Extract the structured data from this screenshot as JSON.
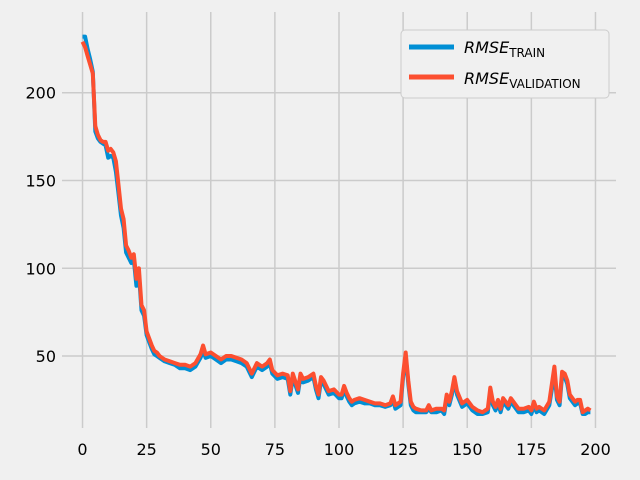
{
  "colors": {
    "background": "#f0f0f0",
    "grid": "#cbcbcb",
    "train": "#008fd5",
    "validation": "#fc4f30"
  },
  "chart_data": {
    "type": "line",
    "title": "",
    "xlabel": "",
    "ylabel": "",
    "xlim": [
      -8,
      208
    ],
    "ylim": [
      9,
      246
    ],
    "xticks": [
      0,
      25,
      50,
      75,
      100,
      125,
      150,
      175,
      200
    ],
    "yticks": [
      50,
      100,
      150,
      200
    ],
    "grid": true,
    "legend": {
      "position": "top-right"
    },
    "series": [
      {
        "name_main": "RMSE",
        "name_sub": "TRAIN",
        "color": "#008fd5",
        "points": [
          [
            0,
            232
          ],
          [
            1,
            232
          ],
          [
            2,
            225
          ],
          [
            3,
            219
          ],
          [
            4,
            212
          ],
          [
            5,
            178
          ],
          [
            6,
            174
          ],
          [
            7,
            172
          ],
          [
            8,
            171
          ],
          [
            9,
            170
          ],
          [
            10,
            163
          ],
          [
            11,
            164
          ],
          [
            12,
            163
          ],
          [
            13,
            155
          ],
          [
            14,
            143
          ],
          [
            15,
            130
          ],
          [
            16,
            123
          ],
          [
            17,
            109
          ],
          [
            18,
            106
          ],
          [
            19,
            103
          ],
          [
            20,
            105
          ],
          [
            21,
            90
          ],
          [
            22,
            97
          ],
          [
            23,
            76
          ],
          [
            24,
            73
          ],
          [
            25,
            62
          ],
          [
            26,
            58
          ],
          [
            27,
            54
          ],
          [
            28,
            51
          ],
          [
            29,
            50
          ],
          [
            30,
            49
          ],
          [
            32,
            47
          ],
          [
            34,
            46
          ],
          [
            36,
            45
          ],
          [
            38,
            43
          ],
          [
            40,
            43
          ],
          [
            42,
            42
          ],
          [
            44,
            44
          ],
          [
            46,
            49
          ],
          [
            47,
            53
          ],
          [
            48,
            49
          ],
          [
            50,
            50
          ],
          [
            52,
            48
          ],
          [
            54,
            46
          ],
          [
            56,
            48
          ],
          [
            58,
            48
          ],
          [
            60,
            47
          ],
          [
            62,
            46
          ],
          [
            64,
            44
          ],
          [
            66,
            38
          ],
          [
            68,
            44
          ],
          [
            70,
            42
          ],
          [
            72,
            44
          ],
          [
            73,
            46
          ],
          [
            74,
            40
          ],
          [
            76,
            37
          ],
          [
            78,
            38
          ],
          [
            80,
            37
          ],
          [
            81,
            28
          ],
          [
            82,
            38
          ],
          [
            84,
            29
          ],
          [
            85,
            38
          ],
          [
            86,
            35
          ],
          [
            88,
            36
          ],
          [
            90,
            38
          ],
          [
            91,
            31
          ],
          [
            92,
            26
          ],
          [
            93,
            36
          ],
          [
            94,
            34
          ],
          [
            96,
            28
          ],
          [
            98,
            29
          ],
          [
            100,
            26
          ],
          [
            101,
            26
          ],
          [
            102,
            31
          ],
          [
            103,
            27
          ],
          [
            104,
            24
          ],
          [
            105,
            22
          ],
          [
            106,
            23
          ],
          [
            108,
            24
          ],
          [
            110,
            23
          ],
          [
            112,
            23
          ],
          [
            114,
            22
          ],
          [
            116,
            22
          ],
          [
            118,
            21
          ],
          [
            120,
            22
          ],
          [
            121,
            25
          ],
          [
            122,
            20
          ],
          [
            124,
            22
          ],
          [
            125,
            38
          ],
          [
            126,
            50
          ],
          [
            127,
            34
          ],
          [
            128,
            22
          ],
          [
            129,
            19
          ],
          [
            130,
            18
          ],
          [
            132,
            18
          ],
          [
            134,
            18
          ],
          [
            135,
            20
          ],
          [
            136,
            18
          ],
          [
            138,
            18
          ],
          [
            140,
            19
          ],
          [
            141,
            17
          ],
          [
            142,
            26
          ],
          [
            143,
            22
          ],
          [
            144,
            28
          ],
          [
            145,
            36
          ],
          [
            146,
            28
          ],
          [
            148,
            21
          ],
          [
            150,
            23
          ],
          [
            152,
            19
          ],
          [
            154,
            17
          ],
          [
            156,
            17
          ],
          [
            158,
            18
          ],
          [
            159,
            30
          ],
          [
            160,
            22
          ],
          [
            161,
            19
          ],
          [
            162,
            23
          ],
          [
            163,
            18
          ],
          [
            164,
            24
          ],
          [
            166,
            20
          ],
          [
            167,
            24
          ],
          [
            168,
            22
          ],
          [
            170,
            18
          ],
          [
            172,
            18
          ],
          [
            174,
            19
          ],
          [
            175,
            17
          ],
          [
            176,
            22
          ],
          [
            177,
            18
          ],
          [
            178,
            19
          ],
          [
            180,
            17
          ],
          [
            182,
            22
          ],
          [
            184,
            40
          ],
          [
            185,
            25
          ],
          [
            186,
            22
          ],
          [
            187,
            39
          ],
          [
            188,
            38
          ],
          [
            189,
            34
          ],
          [
            190,
            26
          ],
          [
            191,
            24
          ],
          [
            192,
            22
          ],
          [
            193,
            23
          ],
          [
            194,
            23
          ],
          [
            195,
            17
          ],
          [
            196,
            17
          ],
          [
            197,
            18
          ],
          [
            198,
            18
          ]
        ]
      },
      {
        "name_main": "RMSE",
        "name_sub": "VALIDATION",
        "color": "#fc4f30",
        "points": [
          [
            0,
            229
          ],
          [
            1,
            226
          ],
          [
            2,
            221
          ],
          [
            3,
            216
          ],
          [
            4,
            211
          ],
          [
            5,
            181
          ],
          [
            6,
            176
          ],
          [
            7,
            173
          ],
          [
            8,
            172
          ],
          [
            9,
            172
          ],
          [
            10,
            167
          ],
          [
            11,
            168
          ],
          [
            12,
            166
          ],
          [
            13,
            161
          ],
          [
            14,
            148
          ],
          [
            15,
            134
          ],
          [
            16,
            128
          ],
          [
            17,
            113
          ],
          [
            18,
            110
          ],
          [
            19,
            106
          ],
          [
            20,
            108
          ],
          [
            21,
            94
          ],
          [
            22,
            100
          ],
          [
            23,
            79
          ],
          [
            24,
            76
          ],
          [
            25,
            64
          ],
          [
            26,
            60
          ],
          [
            27,
            56
          ],
          [
            28,
            53
          ],
          [
            29,
            52
          ],
          [
            30,
            50
          ],
          [
            32,
            48
          ],
          [
            34,
            47
          ],
          [
            36,
            46
          ],
          [
            38,
            45
          ],
          [
            40,
            45
          ],
          [
            42,
            44
          ],
          [
            44,
            46
          ],
          [
            46,
            51
          ],
          [
            47,
            56
          ],
          [
            48,
            51
          ],
          [
            50,
            52
          ],
          [
            52,
            50
          ],
          [
            54,
            48
          ],
          [
            56,
            50
          ],
          [
            58,
            50
          ],
          [
            60,
            49
          ],
          [
            62,
            48
          ],
          [
            64,
            46
          ],
          [
            66,
            40
          ],
          [
            68,
            46
          ],
          [
            70,
            44
          ],
          [
            72,
            46
          ],
          [
            73,
            48
          ],
          [
            74,
            42
          ],
          [
            76,
            39
          ],
          [
            78,
            40
          ],
          [
            80,
            39
          ],
          [
            81,
            30
          ],
          [
            82,
            40
          ],
          [
            84,
            31
          ],
          [
            85,
            40
          ],
          [
            86,
            37
          ],
          [
            88,
            38
          ],
          [
            90,
            40
          ],
          [
            91,
            33
          ],
          [
            92,
            28
          ],
          [
            93,
            38
          ],
          [
            94,
            36
          ],
          [
            96,
            30
          ],
          [
            98,
            31
          ],
          [
            100,
            28
          ],
          [
            101,
            28
          ],
          [
            102,
            33
          ],
          [
            103,
            29
          ],
          [
            104,
            26
          ],
          [
            105,
            24
          ],
          [
            106,
            25
          ],
          [
            108,
            26
          ],
          [
            110,
            25
          ],
          [
            112,
            24
          ],
          [
            114,
            23
          ],
          [
            116,
            23
          ],
          [
            118,
            22
          ],
          [
            120,
            23
          ],
          [
            121,
            27
          ],
          [
            122,
            22
          ],
          [
            124,
            24
          ],
          [
            125,
            40
          ],
          [
            126,
            52
          ],
          [
            127,
            36
          ],
          [
            128,
            24
          ],
          [
            129,
            21
          ],
          [
            130,
            20
          ],
          [
            132,
            19
          ],
          [
            134,
            19
          ],
          [
            135,
            22
          ],
          [
            136,
            19
          ],
          [
            138,
            20
          ],
          [
            140,
            20
          ],
          [
            141,
            19
          ],
          [
            142,
            28
          ],
          [
            143,
            24
          ],
          [
            144,
            30
          ],
          [
            145,
            38
          ],
          [
            146,
            30
          ],
          [
            148,
            23
          ],
          [
            150,
            25
          ],
          [
            152,
            21
          ],
          [
            154,
            19
          ],
          [
            156,
            18
          ],
          [
            158,
            20
          ],
          [
            159,
            32
          ],
          [
            160,
            24
          ],
          [
            161,
            21
          ],
          [
            162,
            25
          ],
          [
            163,
            20
          ],
          [
            164,
            26
          ],
          [
            166,
            22
          ],
          [
            167,
            26
          ],
          [
            168,
            24
          ],
          [
            170,
            20
          ],
          [
            172,
            20
          ],
          [
            174,
            21
          ],
          [
            175,
            19
          ],
          [
            176,
            24
          ],
          [
            177,
            20
          ],
          [
            178,
            21
          ],
          [
            180,
            19
          ],
          [
            182,
            24
          ],
          [
            184,
            44
          ],
          [
            185,
            27
          ],
          [
            186,
            24
          ],
          [
            187,
            41
          ],
          [
            188,
            40
          ],
          [
            189,
            36
          ],
          [
            190,
            28
          ],
          [
            191,
            26
          ],
          [
            192,
            24
          ],
          [
            193,
            25
          ],
          [
            194,
            25
          ],
          [
            195,
            18
          ],
          [
            196,
            19
          ],
          [
            197,
            20
          ],
          [
            198,
            19
          ]
        ]
      }
    ]
  }
}
